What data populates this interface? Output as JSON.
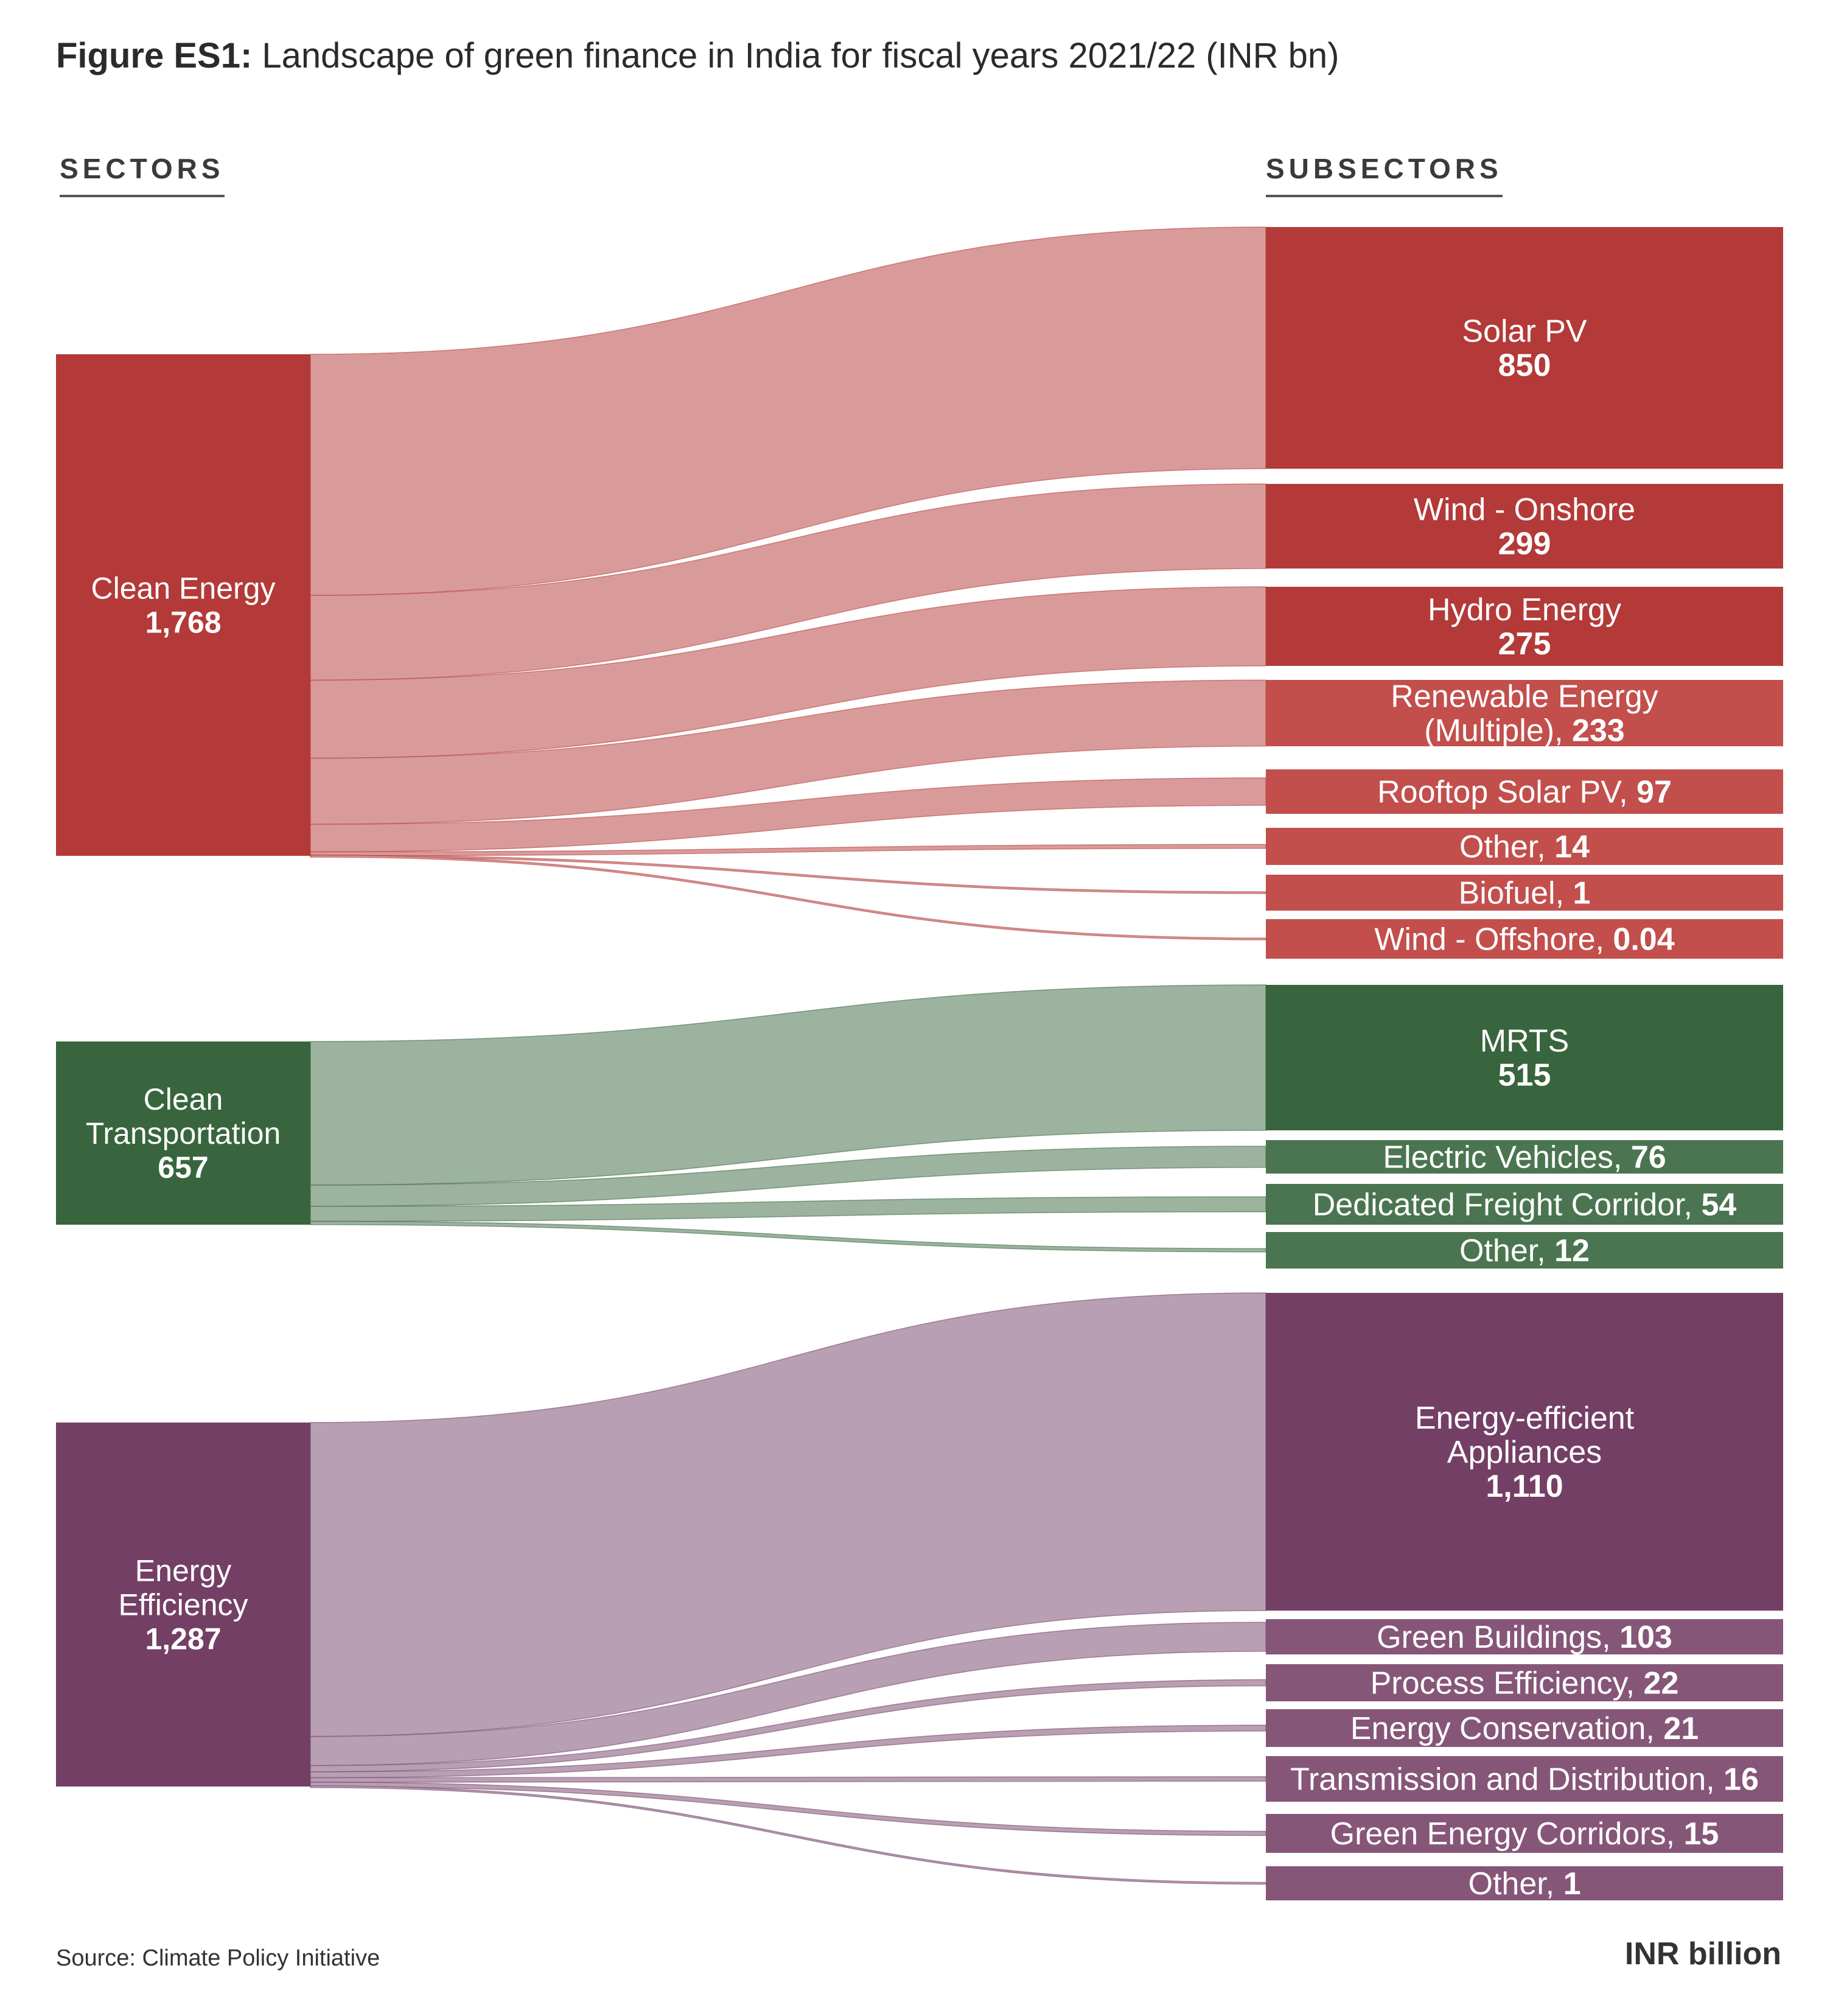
{
  "title": {
    "prefix": "Figure ES1:",
    "text": " Landscape of green finance in India for fiscal years 2021/22 (INR bn)"
  },
  "columns": {
    "sectors": "SECTORS",
    "subsectors": "SUBSECTORS"
  },
  "source": "Source: Climate Policy Initiative",
  "unit": "INR billion",
  "colors": {
    "clean_energy": "#b33a38",
    "clean_energy_light": "#c24f4c",
    "clean_energy_flow": "#d99b99",
    "clean_transport": "#38653d",
    "clean_transport_light": "#4a7550",
    "clean_transport_flow": "#9cb39f",
    "energy_efficiency": "#743f65",
    "energy_efficiency_light": "#865678",
    "energy_efficiency_flow": "#b89fb3"
  },
  "chart_data": {
    "type": "sankey",
    "title": "Figure ES1: Landscape of green finance in India for fiscal years 2021/22 (INR bn)",
    "unit": "INR billion",
    "sectors": [
      {
        "id": "ce",
        "label": [
          "Clean Energy"
        ],
        "value_text": "1,768",
        "value": 1768
      },
      {
        "id": "ct",
        "label": [
          "Clean",
          "Transportation"
        ],
        "value_text": "657",
        "value": 657
      },
      {
        "id": "ee",
        "label": [
          "Energy",
          "Efficiency"
        ],
        "value_text": "1,287",
        "value": 1287
      }
    ],
    "subsectors": [
      {
        "sector": "ce",
        "label": [
          "Solar PV"
        ],
        "value_text": "850",
        "value": 850,
        "style": "stacked"
      },
      {
        "sector": "ce",
        "label": [
          "Wind - Onshore"
        ],
        "value_text": "299",
        "value": 299,
        "style": "stacked"
      },
      {
        "sector": "ce",
        "label": [
          "Hydro Energy"
        ],
        "value_text": "275",
        "value": 275,
        "style": "stacked"
      },
      {
        "sector": "ce",
        "label": [
          "Renewable Energy",
          "(Multiple), "
        ],
        "value_text": "233",
        "value": 233,
        "style": "inline"
      },
      {
        "sector": "ce",
        "label": [
          "Rooftop Solar PV, "
        ],
        "value_text": "97",
        "value": 97,
        "style": "inline"
      },
      {
        "sector": "ce",
        "label": [
          "Other, "
        ],
        "value_text": "14",
        "value": 14,
        "style": "inline"
      },
      {
        "sector": "ce",
        "label": [
          "Biofuel, "
        ],
        "value_text": "1",
        "value": 1,
        "style": "inline"
      },
      {
        "sector": "ce",
        "label": [
          "Wind - Offshore, "
        ],
        "value_text": "0.04",
        "value": 0.04,
        "style": "inline"
      },
      {
        "sector": "ct",
        "label": [
          "MRTS"
        ],
        "value_text": "515",
        "value": 515,
        "style": "stacked"
      },
      {
        "sector": "ct",
        "label": [
          "Electric Vehicles, "
        ],
        "value_text": "76",
        "value": 76,
        "style": "inline"
      },
      {
        "sector": "ct",
        "label": [
          "Dedicated Freight Corridor, "
        ],
        "value_text": "54",
        "value": 54,
        "style": "inline"
      },
      {
        "sector": "ct",
        "label": [
          "Other, "
        ],
        "value_text": "12",
        "value": 12,
        "style": "inline"
      },
      {
        "sector": "ee",
        "label": [
          "Energy-efficient",
          "Appliances"
        ],
        "value_text": "1,110",
        "value": 1110,
        "style": "stacked"
      },
      {
        "sector": "ee",
        "label": [
          "Green Buildings, "
        ],
        "value_text": "103",
        "value": 103,
        "style": "inline"
      },
      {
        "sector": "ee",
        "label": [
          "Process Efficiency, "
        ],
        "value_text": "22",
        "value": 22,
        "style": "inline"
      },
      {
        "sector": "ee",
        "label": [
          "Energy Conservation, "
        ],
        "value_text": "21",
        "value": 21,
        "style": "inline"
      },
      {
        "sector": "ee",
        "label": [
          "Transmission and Distribution, "
        ],
        "value_text": "16",
        "value": 16,
        "style": "inline"
      },
      {
        "sector": "ee",
        "label": [
          "Green Energy Corridors, "
        ],
        "value_text": "15",
        "value": 15,
        "style": "inline"
      },
      {
        "sector": "ee",
        "label": [
          "Other, "
        ],
        "value_text": "1",
        "value": 1,
        "style": "inline"
      }
    ]
  }
}
